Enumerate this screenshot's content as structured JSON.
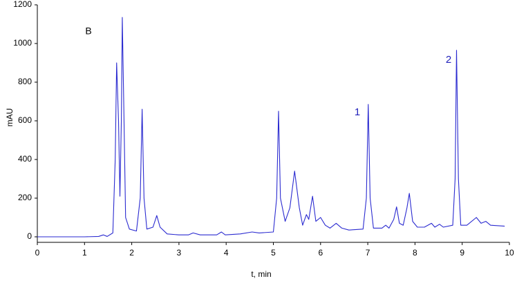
{
  "chart_data": {
    "type": "line",
    "xlabel": "t, min",
    "ylabel": "mAU",
    "annotations": [
      "B",
      "1",
      "2"
    ],
    "color": "#2a2ad0",
    "x": [
      0,
      0.5,
      1.0,
      1.3,
      1.4,
      1.48,
      1.6,
      1.65,
      1.68,
      1.72,
      1.75,
      1.78,
      1.8,
      1.83,
      1.87,
      1.95,
      2.1,
      2.18,
      2.22,
      2.26,
      2.32,
      2.45,
      2.53,
      2.6,
      2.75,
      3.0,
      3.2,
      3.3,
      3.45,
      3.8,
      3.9,
      3.98,
      4.3,
      4.55,
      4.7,
      5.0,
      5.07,
      5.11,
      5.15,
      5.25,
      5.35,
      5.45,
      5.55,
      5.62,
      5.7,
      5.75,
      5.83,
      5.9,
      6.0,
      6.1,
      6.2,
      6.33,
      6.45,
      6.6,
      6.9,
      6.97,
      7.01,
      7.05,
      7.12,
      7.3,
      7.38,
      7.45,
      7.55,
      7.61,
      7.67,
      7.75,
      7.83,
      7.88,
      7.95,
      8.05,
      8.2,
      8.35,
      8.42,
      8.52,
      8.6,
      8.8,
      8.85,
      8.88,
      8.92,
      8.97,
      9.1,
      9.3,
      9.4,
      9.5,
      9.6,
      9.9
    ],
    "values": [
      0,
      0,
      0,
      2,
      10,
      2,
      20,
      400,
      900,
      600,
      210,
      600,
      1135,
      700,
      100,
      40,
      30,
      200,
      660,
      200,
      40,
      50,
      110,
      50,
      15,
      10,
      10,
      20,
      10,
      10,
      25,
      10,
      15,
      25,
      20,
      25,
      200,
      650,
      200,
      80,
      150,
      340,
      150,
      60,
      115,
      90,
      210,
      80,
      100,
      60,
      45,
      70,
      45,
      35,
      40,
      200,
      685,
      200,
      45,
      45,
      60,
      45,
      90,
      155,
      70,
      60,
      150,
      225,
      80,
      50,
      50,
      70,
      50,
      65,
      50,
      60,
      300,
      965,
      300,
      60,
      60,
      100,
      70,
      80,
      60,
      55
    ],
    "xlim": [
      0,
      10
    ],
    "xticks": [
      0,
      1,
      2,
      3,
      4,
      5,
      6,
      7,
      8,
      9,
      10
    ],
    "ylim": [
      0,
      1200
    ],
    "yticks": [
      0,
      200,
      400,
      600,
      800,
      1000,
      1200
    ]
  }
}
